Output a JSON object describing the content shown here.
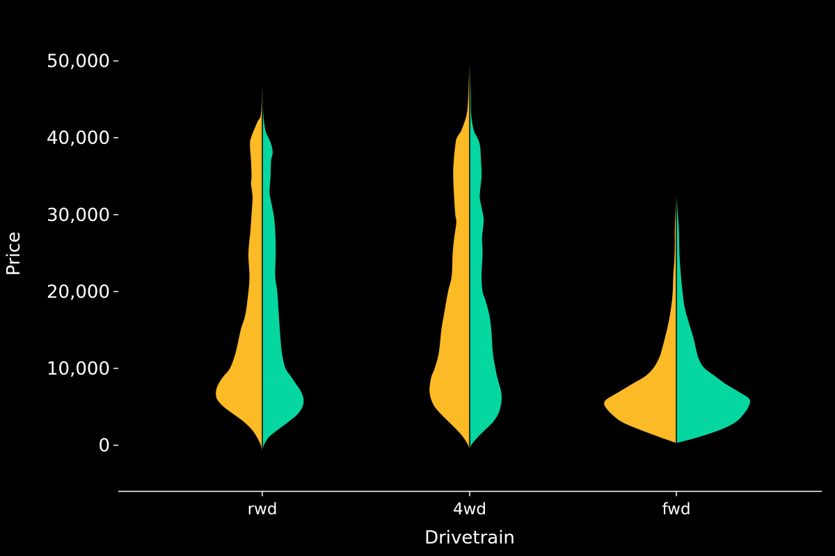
{
  "chart_data": {
    "type": "violin",
    "split": true,
    "xlabel": "Drivetrain",
    "ylabel": "Price",
    "categories": [
      "rwd",
      "4wd",
      "fwd"
    ],
    "ylim": [
      -6000,
      52500
    ],
    "yticks": [
      0,
      10000,
      20000,
      30000,
      40000,
      50000
    ],
    "ytick_labels": [
      "0",
      "10,000",
      "20,000",
      "30,000",
      "40,000",
      "50,000"
    ],
    "colors": {
      "left": "#FBBA26",
      "right": "#06D6A0",
      "midline": "#000000",
      "axis": "#ffffff"
    },
    "halves": [
      {
        "category": "rwd",
        "left": [
          [
            -1000,
            0
          ],
          [
            0,
            0.03
          ],
          [
            1000,
            0.1
          ],
          [
            2000,
            0.2
          ],
          [
            3000,
            0.35
          ],
          [
            4000,
            0.55
          ],
          [
            5000,
            0.75
          ],
          [
            6000,
            0.88
          ],
          [
            7000,
            0.9
          ],
          [
            8000,
            0.85
          ],
          [
            9000,
            0.75
          ],
          [
            10000,
            0.63
          ],
          [
            12000,
            0.52
          ],
          [
            15000,
            0.42
          ],
          [
            17000,
            0.33
          ],
          [
            20000,
            0.27
          ],
          [
            22000,
            0.25
          ],
          [
            25000,
            0.27
          ],
          [
            28000,
            0.23
          ],
          [
            30000,
            0.21
          ],
          [
            32000,
            0.19
          ],
          [
            33000,
            0.2
          ],
          [
            34000,
            0.22
          ],
          [
            35000,
            0.21
          ],
          [
            37000,
            0.22
          ],
          [
            39000,
            0.24
          ],
          [
            40000,
            0.22
          ],
          [
            42000,
            0.1
          ],
          [
            43000,
            0.03
          ],
          [
            46000,
            0.01
          ],
          [
            50300,
            0
          ]
        ],
        "right": [
          [
            -1000,
            0
          ],
          [
            0,
            0.03
          ],
          [
            1000,
            0.12
          ],
          [
            2000,
            0.3
          ],
          [
            3000,
            0.5
          ],
          [
            4000,
            0.68
          ],
          [
            5000,
            0.78
          ],
          [
            6000,
            0.8
          ],
          [
            7000,
            0.75
          ],
          [
            8000,
            0.65
          ],
          [
            9000,
            0.55
          ],
          [
            10000,
            0.45
          ],
          [
            12000,
            0.38
          ],
          [
            15000,
            0.34
          ],
          [
            17000,
            0.32
          ],
          [
            20000,
            0.29
          ],
          [
            22000,
            0.25
          ],
          [
            25000,
            0.26
          ],
          [
            28000,
            0.25
          ],
          [
            30000,
            0.22
          ],
          [
            32000,
            0.16
          ],
          [
            33000,
            0.14
          ],
          [
            35000,
            0.16
          ],
          [
            37000,
            0.17
          ],
          [
            38000,
            0.2
          ],
          [
            39000,
            0.18
          ],
          [
            40000,
            0.12
          ],
          [
            41000,
            0.06
          ],
          [
            43000,
            0.02
          ],
          [
            46000,
            0.01
          ],
          [
            50300,
            0
          ]
        ]
      },
      {
        "category": "4wd",
        "left": [
          [
            -800,
            0
          ],
          [
            0,
            0.03
          ],
          [
            1000,
            0.12
          ],
          [
            2000,
            0.25
          ],
          [
            3000,
            0.4
          ],
          [
            4000,
            0.55
          ],
          [
            5000,
            0.68
          ],
          [
            6000,
            0.75
          ],
          [
            7000,
            0.78
          ],
          [
            8000,
            0.77
          ],
          [
            9000,
            0.74
          ],
          [
            10000,
            0.68
          ],
          [
            12000,
            0.6
          ],
          [
            15000,
            0.55
          ],
          [
            17000,
            0.5
          ],
          [
            20000,
            0.42
          ],
          [
            22000,
            0.35
          ],
          [
            25000,
            0.33
          ],
          [
            27000,
            0.3
          ],
          [
            29000,
            0.26
          ],
          [
            30000,
            0.28
          ],
          [
            32000,
            0.3
          ],
          [
            35000,
            0.32
          ],
          [
            37000,
            0.31
          ],
          [
            39000,
            0.28
          ],
          [
            40000,
            0.25
          ],
          [
            41000,
            0.16
          ],
          [
            43000,
            0.06
          ],
          [
            45000,
            0.03
          ],
          [
            47000,
            0.02
          ],
          [
            49000,
            0.01
          ],
          [
            51000,
            0
          ]
        ],
        "right": [
          [
            -800,
            0
          ],
          [
            0,
            0.03
          ],
          [
            1000,
            0.15
          ],
          [
            2000,
            0.3
          ],
          [
            3000,
            0.45
          ],
          [
            4000,
            0.55
          ],
          [
            5000,
            0.6
          ],
          [
            6000,
            0.62
          ],
          [
            7000,
            0.61
          ],
          [
            8000,
            0.57
          ],
          [
            9000,
            0.53
          ],
          [
            10000,
            0.5
          ],
          [
            12000,
            0.45
          ],
          [
            15000,
            0.42
          ],
          [
            17000,
            0.38
          ],
          [
            19000,
            0.3
          ],
          [
            20000,
            0.25
          ],
          [
            22000,
            0.23
          ],
          [
            25000,
            0.25
          ],
          [
            27000,
            0.24
          ],
          [
            29000,
            0.27
          ],
          [
            30000,
            0.26
          ],
          [
            32000,
            0.2
          ],
          [
            33000,
            0.2
          ],
          [
            35000,
            0.23
          ],
          [
            37000,
            0.22
          ],
          [
            39000,
            0.2
          ],
          [
            40000,
            0.15
          ],
          [
            41000,
            0.08
          ],
          [
            43000,
            0.03
          ],
          [
            46000,
            0.02
          ],
          [
            49000,
            0.01
          ],
          [
            51000,
            0
          ]
        ]
      },
      {
        "category": "fwd",
        "left": [
          [
            300,
            0
          ],
          [
            1000,
            0.3
          ],
          [
            2000,
            0.7
          ],
          [
            3000,
            1.05
          ],
          [
            4000,
            1.25
          ],
          [
            5000,
            1.38
          ],
          [
            5500,
            1.4
          ],
          [
            6000,
            1.35
          ],
          [
            7000,
            1.1
          ],
          [
            8000,
            0.85
          ],
          [
            9000,
            0.6
          ],
          [
            10000,
            0.45
          ],
          [
            11000,
            0.36
          ],
          [
            12000,
            0.3
          ],
          [
            14000,
            0.22
          ],
          [
            16000,
            0.15
          ],
          [
            18000,
            0.1
          ],
          [
            20000,
            0.07
          ],
          [
            22000,
            0.06
          ],
          [
            24000,
            0.04
          ],
          [
            26000,
            0.03
          ],
          [
            28000,
            0.03
          ],
          [
            30000,
            0.02
          ],
          [
            32000,
            0.01
          ],
          [
            33500,
            0
          ]
        ],
        "right": [
          [
            300,
            0
          ],
          [
            1000,
            0.4
          ],
          [
            2000,
            0.85
          ],
          [
            3000,
            1.15
          ],
          [
            4000,
            1.3
          ],
          [
            5000,
            1.4
          ],
          [
            6000,
            1.42
          ],
          [
            7000,
            1.2
          ],
          [
            8000,
            0.95
          ],
          [
            9000,
            0.75
          ],
          [
            10000,
            0.55
          ],
          [
            11000,
            0.45
          ],
          [
            12000,
            0.4
          ],
          [
            14000,
            0.33
          ],
          [
            16000,
            0.24
          ],
          [
            18000,
            0.16
          ],
          [
            20000,
            0.12
          ],
          [
            22000,
            0.09
          ],
          [
            25000,
            0.06
          ],
          [
            28000,
            0.05
          ],
          [
            30000,
            0.03
          ],
          [
            32000,
            0.01
          ],
          [
            33500,
            0
          ]
        ]
      }
    ]
  }
}
